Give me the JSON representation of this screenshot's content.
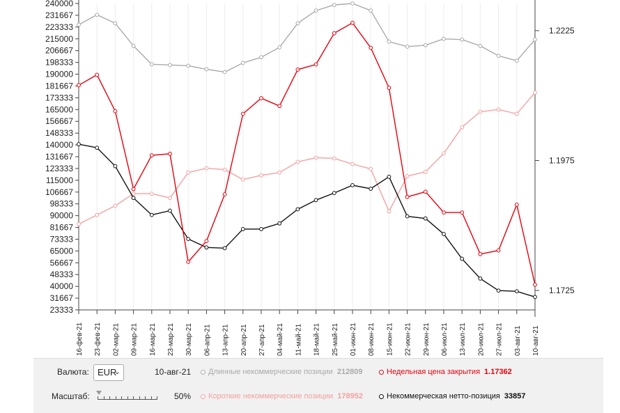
{
  "chart_data": {
    "type": "line",
    "left_axis_ticks": [
      "240000",
      "231667",
      "223333",
      "215000",
      "206667",
      "198333",
      "190000",
      "181667",
      "173333",
      "165000",
      "156667",
      "148333",
      "140000",
      "131667",
      "123333",
      "115000",
      "106667",
      "98333",
      "90000",
      "81667",
      "73333",
      "65000",
      "56667",
      "48333",
      "40000",
      "31667",
      "23333"
    ],
    "left_ylim": [
      23333,
      240000
    ],
    "right_axis_ticks": [
      "1.2225",
      "1.1975",
      "1.1725"
    ],
    "right_tick_values": [
      1.2225,
      1.1975,
      1.1725
    ],
    "categories": [
      "16-фев-21",
      "23-фев-21",
      "02-мар-21",
      "09-мар-21",
      "16-мар-21",
      "23-мар-21",
      "30-мар-21",
      "06-апр-21",
      "13-апр-21",
      "20-апр-21",
      "27-апр-21",
      "04-май-21",
      "11-май-21",
      "18-май-21",
      "25-май-21",
      "01-июн-21",
      "08-июн-21",
      "15-июн-21",
      "22-июн-21",
      "29-июн-21",
      "06-июл-21",
      "13-июл-21",
      "20-июл-21",
      "27-июл-21",
      "03-авг-21",
      "10-авг-21"
    ],
    "series": [
      {
        "name": "Длинные некоммерческие позиции",
        "axis": "left",
        "color": "#aaaaaa",
        "values": [
          225000,
          232000,
          226000,
          210000,
          197000,
          196500,
          196000,
          193500,
          191500,
          198000,
          202000,
          209000,
          226000,
          235000,
          239000,
          240000,
          235000,
          213000,
          209500,
          210500,
          215000,
          214500,
          210000,
          203000,
          199500,
          214500
        ]
      },
      {
        "name": "Короткие некоммерческие позиции",
        "axis": "left",
        "color": "#f4a0a0",
        "values": [
          84000,
          90500,
          97000,
          105500,
          105500,
          102500,
          120500,
          123500,
          122500,
          115500,
          118500,
          120500,
          128000,
          131000,
          130500,
          126500,
          123000,
          93000,
          118000,
          121000,
          134000,
          152500,
          163500,
          165000,
          162000,
          177000
        ]
      },
      {
        "name": "Некоммерческая нетто-позиция",
        "axis": "left",
        "color": "#111111",
        "values": [
          140500,
          138000,
          125000,
          102500,
          90500,
          93500,
          73500,
          67500,
          67000,
          80500,
          80500,
          84500,
          94500,
          101000,
          106000,
          111500,
          109000,
          117500,
          89500,
          88000,
          77000,
          59500,
          45500,
          37000,
          36500,
          32500
        ]
      },
      {
        "name": "Недельная цена закрытия",
        "axis": "right",
        "color": "#e8000d",
        "values": [
          1.212,
          1.214,
          1.207,
          1.192,
          1.1985,
          1.1988,
          1.178,
          1.182,
          1.191,
          1.2065,
          1.2095,
          1.208,
          1.215,
          1.216,
          1.222,
          1.224,
          1.2192,
          1.2115,
          1.1905,
          1.1915,
          1.1875,
          1.1875,
          1.1795,
          1.1802,
          1.189,
          1.1736
        ]
      }
    ]
  },
  "controls": {
    "currency_label": "Валюта:",
    "currency_value": "EUR",
    "date": "10-авг-21",
    "scale_label": "Масштаб:",
    "scale_value": "50%"
  },
  "legend": [
    {
      "label": "Длинные некоммерческие позиции",
      "value": "212809",
      "color": "#aaaaaa"
    },
    {
      "label": "Недельная цена закрытия",
      "value": "1.17362",
      "color": "#e8000d"
    },
    {
      "label": "Короткие некоммерческие позиции",
      "value": "178952",
      "color": "#f4a0a0"
    },
    {
      "label": "Некоммерческая нетто-позиция",
      "value": "33857",
      "color": "#111111"
    }
  ]
}
